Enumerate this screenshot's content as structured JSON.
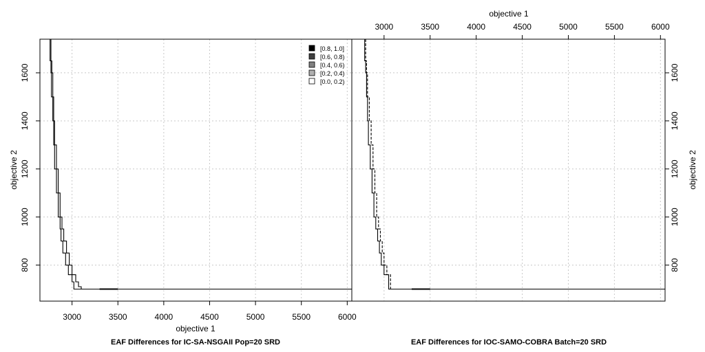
{
  "chart_data": {
    "type": "line",
    "panels": [
      {
        "title": "EAF Differences for IC-SA-NSGAII Pop=20 SRD",
        "xlabel": "objective 1",
        "ylabel": "objective 2",
        "xlim": [
          2650,
          6050
        ],
        "ylim": [
          650,
          1740
        ],
        "xticks": [
          3000,
          3500,
          4000,
          4500,
          5000,
          5500,
          6000
        ],
        "yticks": [
          800,
          1000,
          1200,
          1400,
          1600
        ],
        "xticks_label": [
          "3000",
          "3500",
          "4000",
          "4500",
          "5000",
          "5500",
          "6000"
        ],
        "yticks_label": [
          "800",
          "1000",
          "1200",
          "1400",
          "1600"
        ],
        "x_axis_side": "bottom",
        "y_axis_side": "left",
        "grid": true,
        "series": [
          {
            "style": "solid",
            "x": [
              2760,
              2760,
              2770,
              2775,
              2790,
              2800,
              2810,
              2830,
              2850,
              2870,
              2880,
              2900,
              2930,
              2960,
              3000,
              3020,
              3500,
              6050
            ],
            "y": [
              1740,
              1650,
              1600,
              1500,
              1400,
              1300,
              1200,
              1100,
              1000,
              950,
              900,
              850,
              800,
              760,
              730,
              700,
              700,
              700
            ]
          },
          {
            "style": "solid",
            "x": [
              2770,
              2770,
              2780,
              2790,
              2800,
              2810,
              2830,
              2850,
              2870,
              2890,
              2910,
              2940,
              2970,
              3000,
              3040,
              3070,
              3100,
              6050
            ],
            "y": [
              1740,
              1650,
              1600,
              1500,
              1400,
              1300,
              1200,
              1100,
              1000,
              950,
              900,
              850,
              800,
              760,
              730,
              710,
              700,
              700
            ]
          }
        ],
        "legend": {
          "position": "top-right",
          "entries": [
            {
              "label": "[0.8, 1.0]",
              "color": "#000000"
            },
            {
              "label": "[0.6, 0.8)",
              "color": "#404040"
            },
            {
              "label": "[0.4, 0.6)",
              "color": "#808080"
            },
            {
              "label": "[0.2, 0.4)",
              "color": "#b0b0b0"
            },
            {
              "label": "[0.0, 0.2)",
              "color": "#ffffff"
            }
          ]
        }
      },
      {
        "title": "EAF Differences for IOC-SAMO-COBRA Batch=20 SRD",
        "xlabel": "objective 1",
        "ylabel": "objective 2",
        "xlim": [
          2650,
          6050
        ],
        "ylim": [
          650,
          1740
        ],
        "xticks": [
          3000,
          3500,
          4000,
          4500,
          5000,
          5500,
          6000
        ],
        "yticks": [
          800,
          1000,
          1200,
          1400,
          1600
        ],
        "xticks_label": [
          "3000",
          "3500",
          "4000",
          "4500",
          "5000",
          "5500",
          "6000"
        ],
        "yticks_label": [
          "800",
          "1000",
          "1200",
          "1400",
          "1600"
        ],
        "x_axis_side": "top",
        "y_axis_side": "right",
        "grid": true,
        "series": [
          {
            "style": "solid",
            "x": [
              2790,
              2790,
              2800,
              2810,
              2820,
              2830,
              2850,
              2870,
              2890,
              2910,
              2930,
              2950,
              2970,
              3000,
              3050,
              3500,
              6050
            ],
            "y": [
              1740,
              1650,
              1600,
              1500,
              1400,
              1300,
              1200,
              1100,
              1000,
              950,
              900,
              850,
              800,
              760,
              700,
              700,
              700
            ]
          },
          {
            "style": "dashed",
            "x": [
              2800,
              2800,
              2810,
              2820,
              2840,
              2860,
              2880,
              2900,
              2920,
              2940,
              2960,
              2980,
              3000,
              3030,
              3070,
              3500,
              6050
            ],
            "y": [
              1740,
              1650,
              1600,
              1500,
              1400,
              1300,
              1200,
              1100,
              1000,
              950,
              900,
              850,
              800,
              760,
              700,
              700,
              700
            ]
          }
        ]
      }
    ]
  }
}
